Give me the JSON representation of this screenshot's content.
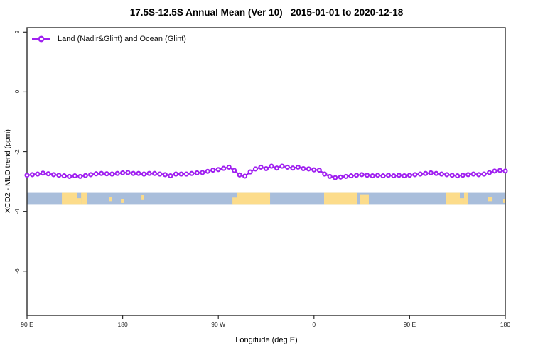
{
  "title": "17.5S-12.5S Annual Mean (Ver 10)   2015-01-01 to 2020-12-18",
  "legend": {
    "label": "Land (Nadir&Glint) and Ocean (Glint)",
    "marker_color": "#A020F0"
  },
  "axes": {
    "x": {
      "label": "Longitude (deg E)"
    },
    "y": {
      "label": "XCO2 - MLO trend (ppm)"
    }
  },
  "chart_data": {
    "type": "line",
    "title": "17.5S-12.5S Annual Mean (Ver 10)   2015-01-01 to 2020-12-18",
    "xlabel": "Longitude (deg E)",
    "ylabel": "XCO2 - MLO trend (ppm)",
    "xlim": [
      90,
      540
    ],
    "ylim": [
      -7.48,
      2.15
    ],
    "x_ticks": [
      {
        "pos": 90,
        "label": "90 E"
      },
      {
        "pos": 180,
        "label": "180"
      },
      {
        "pos": 270,
        "label": "90 W"
      },
      {
        "pos": 360,
        "label": "0"
      },
      {
        "pos": 450,
        "label": "90 E"
      },
      {
        "pos": 540,
        "label": "180"
      }
    ],
    "y_ticks": [
      2,
      0,
      -2,
      -4,
      -6
    ],
    "x": [
      90,
      95,
      100,
      105,
      110,
      115,
      120,
      125,
      130,
      135,
      140,
      145,
      150,
      155,
      160,
      165,
      170,
      175,
      180,
      185,
      190,
      195,
      200,
      205,
      210,
      215,
      220,
      225,
      230,
      235,
      240,
      245,
      250,
      255,
      260,
      265,
      270,
      275,
      280,
      285,
      290,
      295,
      300,
      305,
      310,
      315,
      320,
      325,
      330,
      335,
      340,
      345,
      350,
      355,
      360,
      365,
      370,
      375,
      380,
      385,
      390,
      395,
      400,
      405,
      410,
      415,
      420,
      425,
      430,
      435,
      440,
      445,
      450,
      455,
      460,
      465,
      470,
      475,
      480,
      485,
      490,
      495,
      500,
      505,
      510,
      515,
      520,
      525,
      530,
      535,
      540
    ],
    "series": [
      {
        "name": "Land (Nadir&Glint) and Ocean (Glint)",
        "color": "#A020F0",
        "values": [
          -2.79,
          -2.77,
          -2.75,
          -2.72,
          -2.74,
          -2.77,
          -2.79,
          -2.81,
          -2.83,
          -2.81,
          -2.83,
          -2.8,
          -2.77,
          -2.74,
          -2.73,
          -2.74,
          -2.75,
          -2.73,
          -2.71,
          -2.7,
          -2.73,
          -2.73,
          -2.75,
          -2.73,
          -2.73,
          -2.75,
          -2.77,
          -2.81,
          -2.75,
          -2.75,
          -2.75,
          -2.73,
          -2.71,
          -2.7,
          -2.66,
          -2.62,
          -2.6,
          -2.56,
          -2.52,
          -2.63,
          -2.78,
          -2.82,
          -2.68,
          -2.58,
          -2.52,
          -2.57,
          -2.49,
          -2.55,
          -2.49,
          -2.52,
          -2.55,
          -2.52,
          -2.57,
          -2.58,
          -2.61,
          -2.62,
          -2.75,
          -2.83,
          -2.87,
          -2.85,
          -2.83,
          -2.81,
          -2.79,
          -2.77,
          -2.79,
          -2.81,
          -2.79,
          -2.81,
          -2.79,
          -2.81,
          -2.79,
          -2.81,
          -2.79,
          -2.77,
          -2.75,
          -2.73,
          -2.71,
          -2.73,
          -2.75,
          -2.77,
          -2.79,
          -2.81,
          -2.79,
          -2.77,
          -2.75,
          -2.77,
          -2.75,
          -2.7,
          -2.65,
          -2.63,
          -2.65
        ]
      }
    ],
    "band": {
      "description": "land-ocean longitude strip",
      "value_top": -3.38,
      "value_bottom": -3.78,
      "ocean_color": "#a9bedb",
      "land_color": "#fcdc8b",
      "land_patches": [
        {
          "lon0": 122.8,
          "lon1": 136.9,
          "top": 0,
          "bottom": 1
        },
        {
          "lon0": 136.9,
          "lon1": 140.9,
          "top": 0.45,
          "bottom": 1
        },
        {
          "lon0": 140.9,
          "lon1": 146.8,
          "top": 0,
          "bottom": 1
        },
        {
          "lon0": 167.2,
          "lon1": 170.2,
          "top": 0.35,
          "bottom": 0.7
        },
        {
          "lon0": 178.3,
          "lon1": 181.0,
          "top": 0.5,
          "bottom": 0.85
        },
        {
          "lon0": 197.7,
          "lon1": 200.3,
          "top": 0.2,
          "bottom": 0.55
        },
        {
          "lon0": 283.3,
          "lon1": 287.3,
          "top": 0.4,
          "bottom": 1
        },
        {
          "lon0": 287.3,
          "lon1": 318.7,
          "top": 0,
          "bottom": 1
        },
        {
          "lon0": 369.5,
          "lon1": 400.3,
          "top": 0,
          "bottom": 1
        },
        {
          "lon0": 403.6,
          "lon1": 411.6,
          "top": 0.12,
          "bottom": 1
        },
        {
          "lon0": 484.5,
          "lon1": 497.2,
          "top": 0,
          "bottom": 1
        },
        {
          "lon0": 497.2,
          "lon1": 501.2,
          "top": 0.45,
          "bottom": 1
        },
        {
          "lon0": 501.2,
          "lon1": 504.6,
          "top": 0,
          "bottom": 1
        },
        {
          "lon0": 523.3,
          "lon1": 528.0,
          "top": 0.35,
          "bottom": 0.7
        },
        {
          "lon0": 538.0,
          "lon1": 540.0,
          "top": 0.5,
          "bottom": 0.85
        }
      ]
    },
    "legend_position": "top-left",
    "grid": false
  },
  "style": {
    "box_color": "#2e2e2e",
    "tick_color": "#2e2e2e",
    "marker_fill": "#ffffff"
  }
}
